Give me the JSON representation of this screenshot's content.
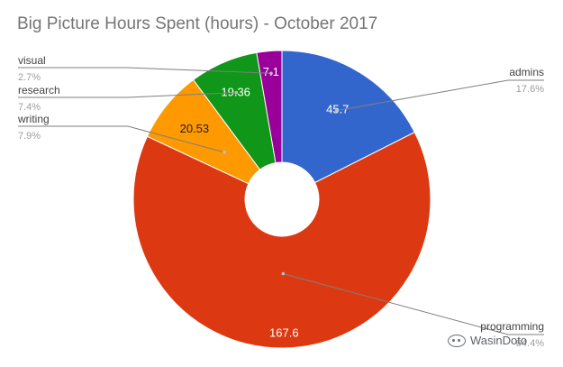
{
  "chart_data": {
    "type": "pie",
    "title": "Big Picture Hours Spent (hours) - October 2017",
    "donut": true,
    "slices": [
      {
        "label": "admins",
        "value": 45.7,
        "value_label": "45.7",
        "percent": "17.6%",
        "color": "#3366cc"
      },
      {
        "label": "programming",
        "value": 167.6,
        "value_label": "167.6",
        "percent": "64.4%",
        "color": "#dc3912"
      },
      {
        "label": "writing",
        "value": 20.53,
        "value_label": "20.53",
        "percent": "7.9%",
        "color": "#ff9900"
      },
      {
        "label": "research",
        "value": 19.36,
        "value_label": "19.36",
        "percent": "7.4%",
        "color": "#109618"
      },
      {
        "label": "visual",
        "value": 7.1,
        "value_label": "7.1",
        "percent": "2.7%",
        "color": "#990099"
      }
    ]
  },
  "watermark": {
    "text": "WasinDoto"
  }
}
